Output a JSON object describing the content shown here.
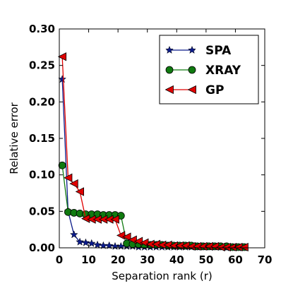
{
  "chart_data": {
    "type": "line",
    "title": "",
    "xlabel": "Separation rank (r)",
    "ylabel": "Relative error",
    "xlim": [
      0,
      70
    ],
    "ylim": [
      0,
      0.3
    ],
    "xticks": [
      0,
      10,
      20,
      30,
      40,
      50,
      60,
      70
    ],
    "xtick_labels": [
      "0",
      "10",
      "20",
      "30",
      "40",
      "50",
      "60",
      "70"
    ],
    "yticks": [
      0.0,
      0.05,
      0.1,
      0.15,
      0.2,
      0.25,
      0.3
    ],
    "ytick_labels": [
      "0.00",
      "0.05",
      "0.10",
      "0.15",
      "0.20",
      "0.25",
      "0.30"
    ],
    "grid": false,
    "legend_position": "top-right",
    "series": [
      {
        "name": "SPA",
        "color": "#0b1b8a",
        "marker": "star",
        "x": [
          1,
          3,
          5,
          7,
          9,
          11,
          13,
          15,
          17,
          19,
          21,
          23,
          25,
          27,
          29,
          31,
          33,
          35,
          37,
          39,
          41,
          43,
          45,
          47,
          49,
          51,
          53,
          55,
          57,
          59,
          61,
          63
        ],
        "y": [
          0.231,
          0.05,
          0.018,
          0.008,
          0.007,
          0.006,
          0.004,
          0.003,
          0.003,
          0.002,
          0.002,
          0.002,
          0.002,
          0.001,
          0.001,
          0.001,
          0.001,
          0.001,
          0.001,
          0.001,
          0.001,
          0.001,
          0.001,
          0.001,
          0.001,
          0.001,
          0.001,
          0.001,
          0.0,
          0.0,
          0.0,
          0.0
        ]
      },
      {
        "name": "XRAY",
        "color": "#107a10",
        "marker": "circle",
        "x": [
          1,
          3,
          5,
          7,
          9,
          11,
          13,
          15,
          17,
          19,
          21,
          23,
          25,
          27,
          29,
          31,
          33,
          35,
          37,
          39,
          41,
          43,
          45,
          47,
          49,
          51,
          53,
          55,
          57,
          59,
          61,
          63
        ],
        "y": [
          0.113,
          0.049,
          0.048,
          0.047,
          0.046,
          0.046,
          0.046,
          0.045,
          0.045,
          0.045,
          0.044,
          0.006,
          0.005,
          0.005,
          0.004,
          0.004,
          0.004,
          0.004,
          0.003,
          0.003,
          0.003,
          0.003,
          0.003,
          0.002,
          0.002,
          0.002,
          0.002,
          0.002,
          0.002,
          0.001,
          0.001,
          0.001
        ]
      },
      {
        "name": "GP",
        "color": "#e00000",
        "marker": "triangle-left",
        "x": [
          1,
          3,
          5,
          7,
          9,
          11,
          13,
          15,
          17,
          19,
          21,
          23,
          25,
          27,
          29,
          31,
          33,
          35,
          37,
          39,
          41,
          43,
          45,
          47,
          49,
          51,
          53,
          55,
          57,
          59,
          61,
          63
        ],
        "y": [
          0.262,
          0.096,
          0.088,
          0.077,
          0.04,
          0.039,
          0.039,
          0.039,
          0.039,
          0.039,
          0.017,
          0.015,
          0.011,
          0.009,
          0.007,
          0.005,
          0.005,
          0.004,
          0.004,
          0.003,
          0.003,
          0.003,
          0.002,
          0.002,
          0.002,
          0.002,
          0.002,
          0.001,
          0.001,
          0.001,
          0.001,
          0.001
        ]
      }
    ]
  }
}
